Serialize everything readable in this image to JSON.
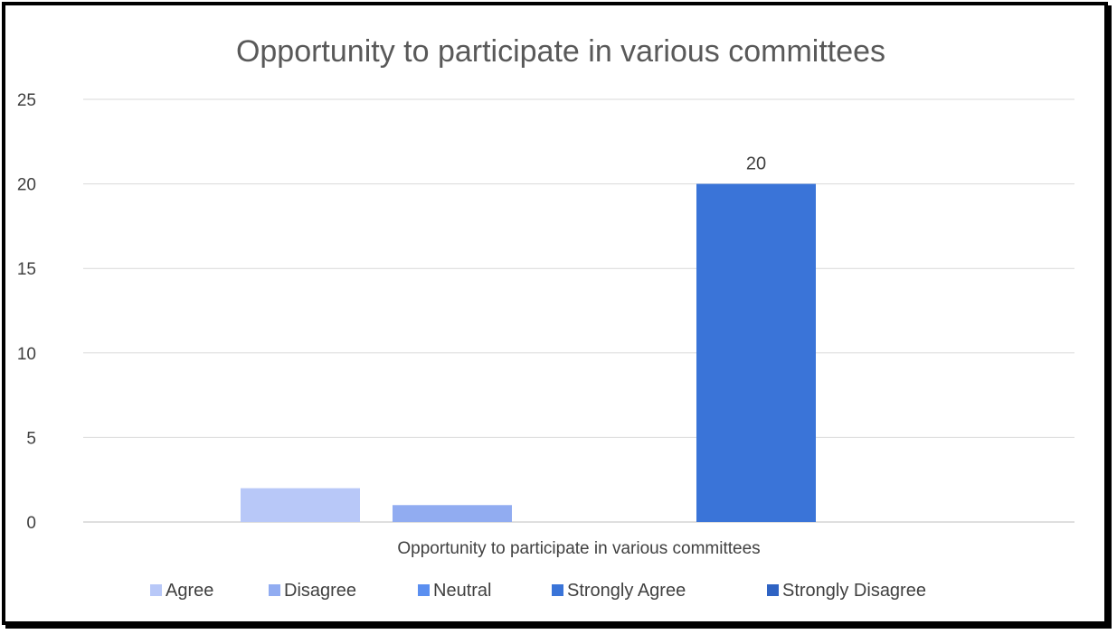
{
  "chart_data": {
    "type": "bar",
    "title": "Opportunity to participate in various committees",
    "xlabel": "Opportunity to participate in various committees",
    "ylabel": "",
    "categories": [
      "Opportunity to participate in various committees"
    ],
    "series": [
      {
        "name": "Agree",
        "values": [
          2
        ],
        "color": "#b8c8f8"
      },
      {
        "name": "Disagree",
        "values": [
          1
        ],
        "color": "#91acf1"
      },
      {
        "name": "Neutral",
        "values": [
          0
        ],
        "color": "#5b8ff0"
      },
      {
        "name": "Strongly Agree",
        "values": [
          20
        ],
        "color": "#3a74d8",
        "data_label": "20"
      },
      {
        "name": "Strongly Disagree",
        "values": [
          0
        ],
        "color": "#2f63c3"
      }
    ],
    "ylim": [
      0,
      25
    ],
    "yticks": [
      0,
      5,
      10,
      15,
      20,
      25
    ],
    "grid": true,
    "legend_position": "bottom"
  }
}
